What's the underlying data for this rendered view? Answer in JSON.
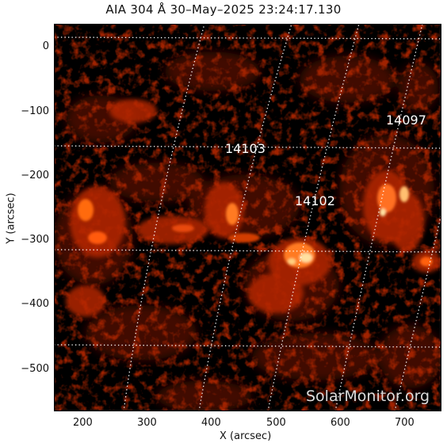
{
  "title": "AIA 304 Å 30–May–2025 23:24:17.130",
  "xlabel": "X (arcsec)",
  "ylabel": "Y (arcsec)",
  "x_ticks": [
    "200",
    "300",
    "400",
    "500",
    "600",
    "700"
  ],
  "y_ticks": [
    "0",
    "−100",
    "−200",
    "−300",
    "−400",
    "−500"
  ],
  "regions": [
    "14097",
    "14103",
    "14102"
  ],
  "watermark": "SolarMonitor.org",
  "colors": {
    "background": "#000000",
    "emission_dim": "#5a0a00",
    "emission_mid": "#c83200",
    "emission_bright": "#ffd890",
    "grid": "#ffffff"
  }
}
